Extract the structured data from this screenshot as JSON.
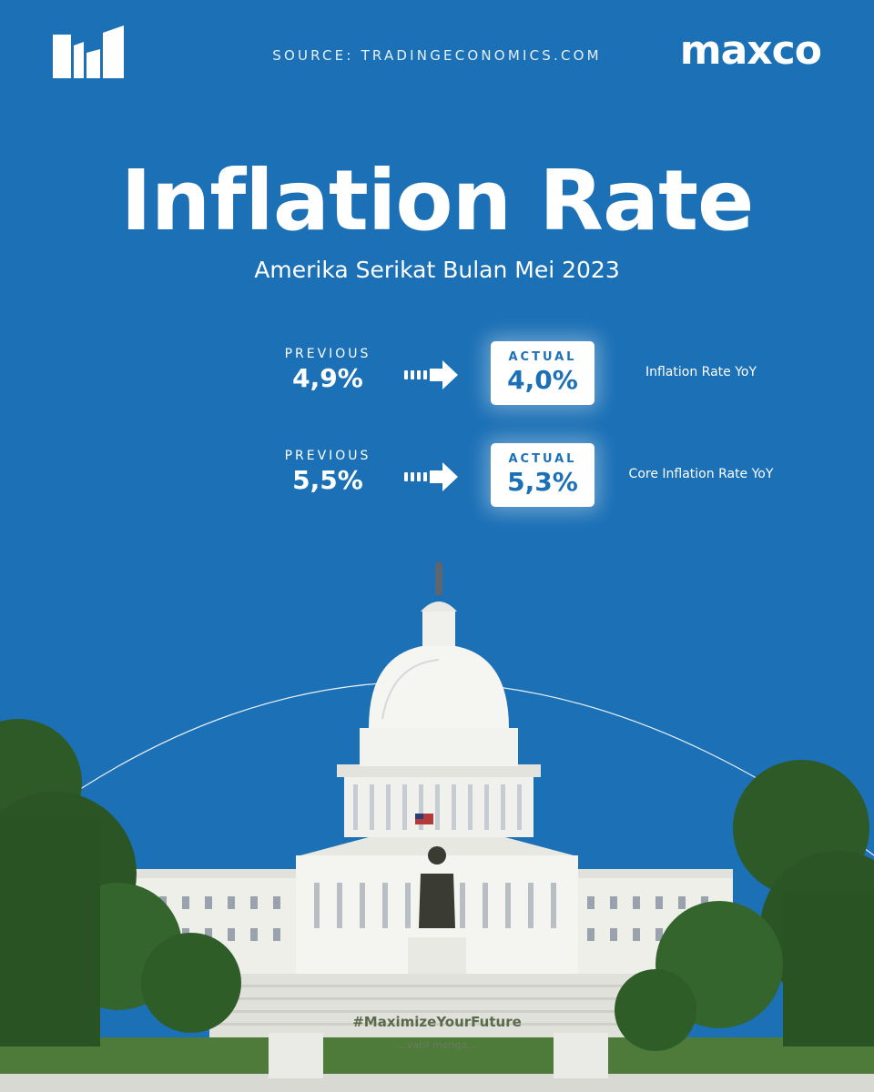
{
  "header": {
    "source": "SOURCE: TRADINGECONOMICS.COM",
    "brand": "maxco",
    "logo_icon": "bars-logo-icon"
  },
  "title": "Inflation Rate",
  "subtitle": "Amerika Serikat Bulan Mei 2023",
  "rows": [
    {
      "previous_label": "PREVIOUS",
      "previous_value": "4,9%",
      "actual_label": "ACTUAL",
      "actual_value": "4,0%",
      "description": "Inflation Rate YoY"
    },
    {
      "previous_label": "PREVIOUS",
      "previous_value": "5,5%",
      "actual_label": "ACTUAL",
      "actual_value": "5,3%",
      "description": "Core Inflation Rate YoY"
    }
  ],
  "footer": {
    "hashtag": "#MaximizeYourFuture",
    "tagline": "...vatif menga..."
  },
  "colors": {
    "background": "#1b70b6",
    "text": "#ffffff",
    "accent": "#1b70b6",
    "tree": "#2f5a2a",
    "building": "#f2f2ef"
  }
}
